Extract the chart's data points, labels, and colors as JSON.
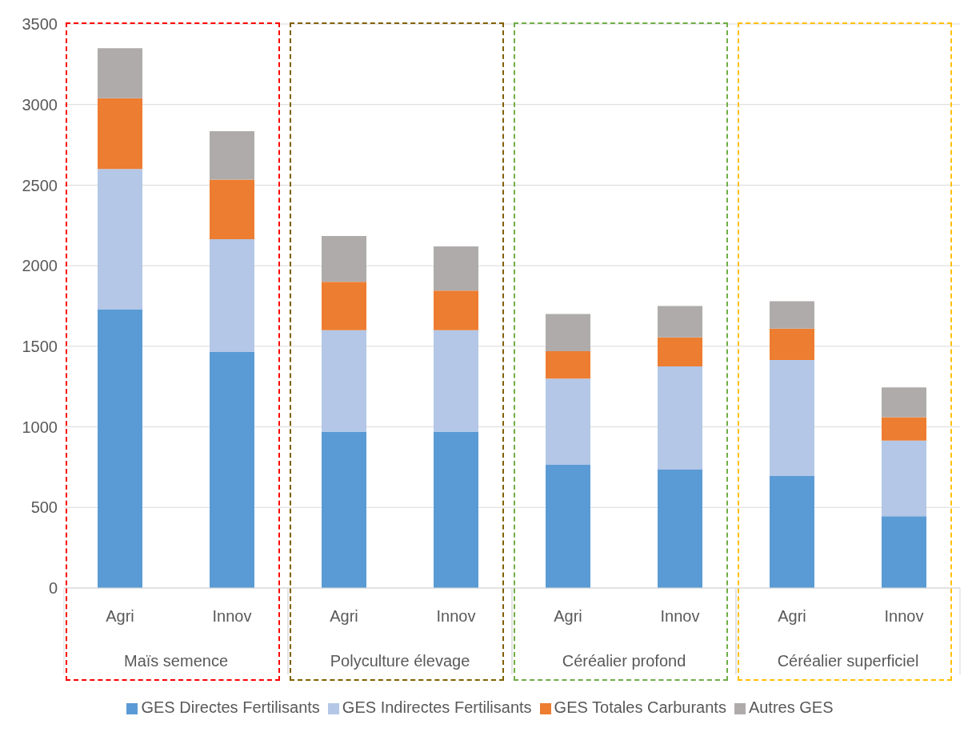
{
  "chart_data": {
    "type": "bar",
    "stacked": true,
    "categories": [
      "Agri",
      "Innov",
      "Agri",
      "Innov",
      "Agri",
      "Innov",
      "Agri",
      "Innov"
    ],
    "annotations": [
      "Maïs semence",
      "Polyculture élevage",
      "Céréalier profond",
      "Céréalier superficiel"
    ],
    "series": [
      {
        "name": "GES Directes Fertilisants",
        "color": "#5b9bd5",
        "values": [
          1730,
          1465,
          970,
          970,
          765,
          735,
          695,
          445
        ]
      },
      {
        "name": "GES Indirectes Fertilisants",
        "color": "#b4c7e7",
        "values": [
          870,
          700,
          630,
          630,
          535,
          640,
          720,
          470
        ]
      },
      {
        "name": "GES Totales Carburants",
        "color": "#ed7d31",
        "values": [
          440,
          370,
          300,
          245,
          170,
          180,
          195,
          145
        ]
      },
      {
        "name": "Autres GES",
        "color": "#afabab",
        "values": [
          310,
          300,
          285,
          275,
          230,
          195,
          170,
          185
        ]
      }
    ],
    "ylim": [
      0,
      3500
    ],
    "yticks": [
      0,
      500,
      1000,
      1500,
      2000,
      2500,
      3000,
      3500
    ],
    "grid": "y",
    "legend": "bottom"
  }
}
